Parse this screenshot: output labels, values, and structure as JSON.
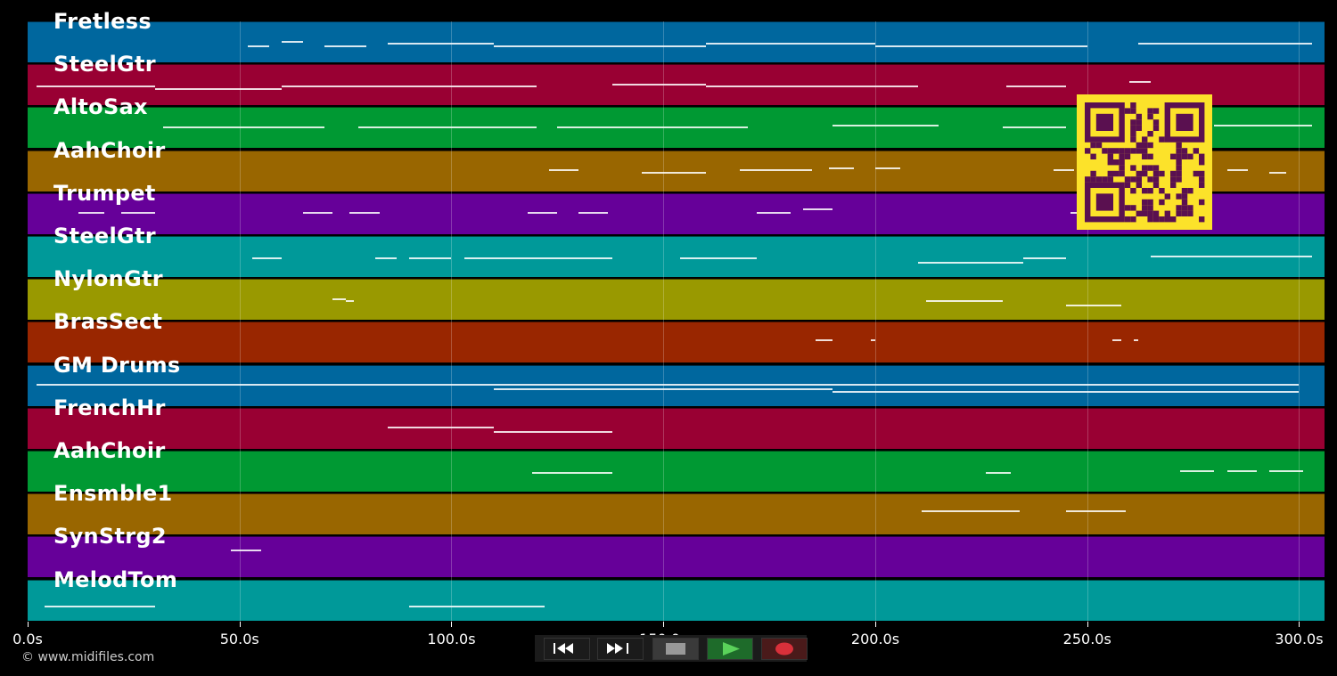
{
  "tracks": [
    {
      "name": "Fretless",
      "color": "#00679e"
    },
    {
      "name": "SteelGtr",
      "color": "#990033"
    },
    {
      "name": "AltoSax",
      "color": "#009933"
    },
    {
      "name": "AahChoir",
      "color": "#996600"
    },
    {
      "name": "Trumpet",
      "color": "#660099"
    },
    {
      "name": "SteelGtr",
      "color": "#009999"
    },
    {
      "name": "NylonGtr",
      "color": "#999900"
    },
    {
      "name": "BrasSect",
      "color": "#992600"
    },
    {
      "name": "GM Drums",
      "color": "#00679e"
    },
    {
      "name": "FrenchHr",
      "color": "#990033"
    },
    {
      "name": "AahChoir",
      "color": "#009933"
    },
    {
      "name": "Ensmble1",
      "color": "#996600"
    },
    {
      "name": "SynStrg2",
      "color": "#660099"
    },
    {
      "name": "MelodTom",
      "color": "#009999"
    }
  ],
  "timeline": {
    "ticks": [
      "0.0s",
      "50.0s",
      "100.0s",
      "150.0s",
      "200.0s",
      "250.0s",
      "300.0s"
    ],
    "tick_seconds": [
      0,
      50,
      100,
      150,
      200,
      250,
      300
    ],
    "start_seconds": 0,
    "end_seconds": 306
  },
  "copyright": "© www.midifiles.com",
  "transport": {
    "buttons": [
      {
        "name": "rewind-button",
        "icon": "rewind-icon",
        "color": "#111111"
      },
      {
        "name": "fast-forward-button",
        "icon": "fast-forward-icon",
        "color": "#111111"
      },
      {
        "name": "stop-button",
        "icon": "stop-icon",
        "color": "#3a3a3a"
      },
      {
        "name": "play-button",
        "icon": "play-icon",
        "color": "#1e6b2a"
      },
      {
        "name": "record-button",
        "icon": "record-icon",
        "color": "#4a1a1a"
      }
    ]
  },
  "qr_code": {
    "icon": "qr-code-icon",
    "fg": "#5a1050",
    "bg": "#fce22a"
  }
}
